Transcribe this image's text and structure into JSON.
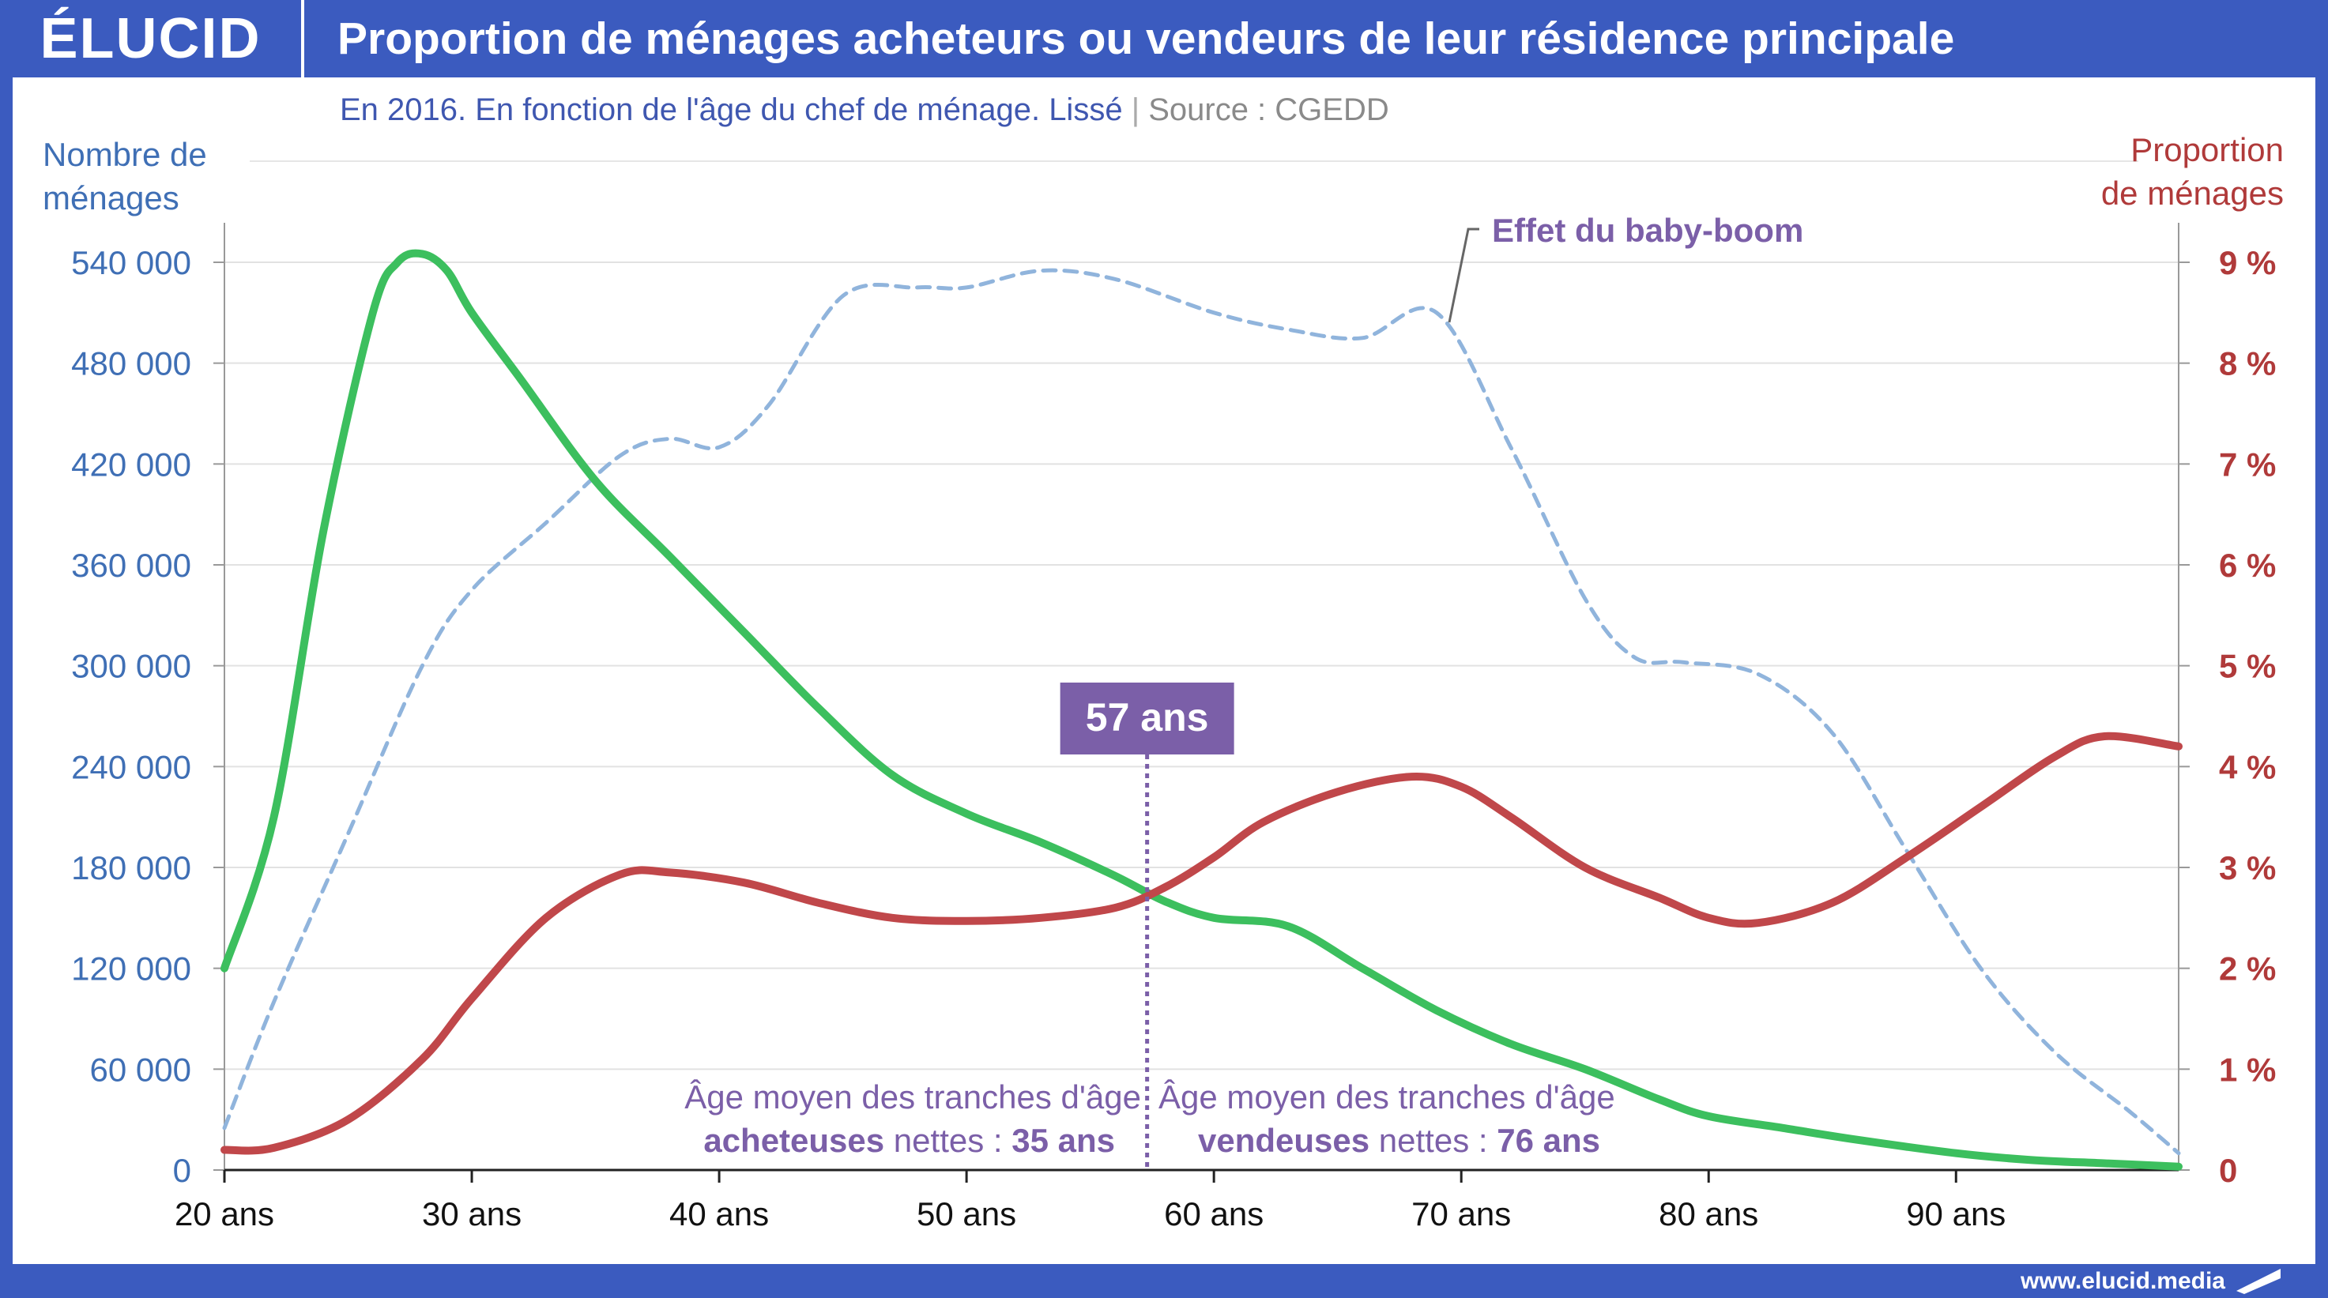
{
  "header": {
    "logo": "ÉLUCID",
    "title": "Proportion de ménages acheteurs ou vendeurs de leur résidence principale"
  },
  "subtitle": "En 2016. En fonction de l'âge du chef de ménage. Lissé",
  "source": "Source : CGEDD",
  "footer": {
    "website": "www.elucid.media"
  },
  "colors": {
    "brand": "#3b5bbf",
    "green": "#3cbf5e",
    "red": "#c0474a",
    "blue_dashed": "#90b4dc",
    "purple": "#7b5fa8",
    "left_axis": "#3f6fb5",
    "right_axis": "#b03a3a"
  },
  "chart_data": {
    "type": "line",
    "ylabel_left": [
      "Nombre de",
      "ménages"
    ],
    "ylabel_right": [
      "Proportion",
      "de ménages"
    ],
    "x_ticks": [
      {
        "value": 20,
        "label": "20 ans"
      },
      {
        "value": 30,
        "label": "30 ans"
      },
      {
        "value": 40,
        "label": "40 ans"
      },
      {
        "value": 50,
        "label": "50 ans"
      },
      {
        "value": 60,
        "label": "60 ans"
      },
      {
        "value": 70,
        "label": "70 ans"
      },
      {
        "value": 80,
        "label": "80 ans"
      },
      {
        "value": 90,
        "label": "90 ans"
      }
    ],
    "xlim": [
      20,
      99
    ],
    "y_left_ticks": [
      {
        "value": 0,
        "label": "0"
      },
      {
        "value": 60000,
        "label": "60 000"
      },
      {
        "value": 120000,
        "label": "120 000"
      },
      {
        "value": 180000,
        "label": "180 000"
      },
      {
        "value": 240000,
        "label": "240 000"
      },
      {
        "value": 300000,
        "label": "300 000"
      },
      {
        "value": 360000,
        "label": "360 000"
      },
      {
        "value": 420000,
        "label": "420 000"
      },
      {
        "value": 480000,
        "label": "480 000"
      },
      {
        "value": 540000,
        "label": "540 000"
      }
    ],
    "y_left_lim": [
      0,
      540000
    ],
    "y_right_ticks": [
      {
        "value": 0,
        "label": "0"
      },
      {
        "value": 1,
        "label": "1 %"
      },
      {
        "value": 2,
        "label": "2 %"
      },
      {
        "value": 3,
        "label": "3 %"
      },
      {
        "value": 4,
        "label": "4 %"
      },
      {
        "value": 5,
        "label": "5 %"
      },
      {
        "value": 6,
        "label": "6 %"
      },
      {
        "value": 7,
        "label": "7 %"
      },
      {
        "value": 8,
        "label": "8 %"
      },
      {
        "value": 9,
        "label": "9 %"
      }
    ],
    "y_right_lim": [
      0,
      9
    ],
    "grid": true,
    "series": [
      {
        "key": "households",
        "axis": "left",
        "style": "dashed",
        "x": [
          20,
          22,
          25,
          28,
          30,
          33,
          36,
          38,
          40,
          42,
          45,
          48,
          50,
          53,
          56,
          60,
          63,
          66,
          69,
          72,
          75,
          77,
          79,
          82,
          85,
          88,
          91,
          94,
          97,
          99
        ],
        "y": [
          25000,
          100000,
          200000,
          300000,
          345000,
          385000,
          425000,
          435000,
          430000,
          455000,
          520000,
          525000,
          525000,
          535000,
          530000,
          510000,
          500000,
          495000,
          510000,
          430000,
          340000,
          305000,
          302000,
          295000,
          260000,
          190000,
          120000,
          70000,
          35000,
          10000
        ]
      },
      {
        "key": "green",
        "axis": "left",
        "style": "solid",
        "x": [
          20,
          22,
          24,
          26,
          27,
          28,
          29,
          30,
          32,
          35,
          38,
          41,
          44,
          47,
          50,
          53,
          56,
          58,
          60,
          63,
          66,
          69,
          72,
          75,
          78,
          80,
          83,
          86,
          90,
          93,
          96,
          99
        ],
        "y": [
          120000,
          210000,
          380000,
          510000,
          540000,
          545000,
          535000,
          510000,
          470000,
          410000,
          365000,
          320000,
          275000,
          235000,
          212000,
          195000,
          175000,
          160000,
          150000,
          145000,
          120000,
          95000,
          75000,
          60000,
          42000,
          32000,
          25000,
          18000,
          10000,
          6000,
          4000,
          2000
        ]
      },
      {
        "key": "red",
        "axis": "right",
        "style": "solid",
        "x": [
          20,
          22,
          25,
          28,
          30,
          33,
          36,
          38,
          41,
          44,
          47,
          50,
          53,
          56,
          58,
          60,
          62,
          65,
          68,
          70,
          72,
          75,
          78,
          80,
          82,
          85,
          88,
          91,
          94,
          96,
          99
        ],
        "y": [
          0.2,
          0.22,
          0.5,
          1.1,
          1.7,
          2.5,
          2.93,
          2.95,
          2.85,
          2.65,
          2.5,
          2.47,
          2.5,
          2.6,
          2.8,
          3.1,
          3.45,
          3.75,
          3.9,
          3.8,
          3.5,
          3.0,
          2.7,
          2.5,
          2.45,
          2.65,
          3.1,
          3.6,
          4.1,
          4.3,
          4.2
        ]
      }
    ],
    "annotations": {
      "baby_boom": "Effet du baby-boom",
      "marker_label": "57 ans",
      "marker_x": 57.3,
      "buyers_line1": "Âge moyen des tranches d'âge",
      "buyers_bold": "acheteuses",
      "buyers_mid": " nettes : ",
      "buyers_age": "35 ans",
      "sellers_line1": "Âge moyen des tranches d'âge",
      "sellers_bold": "vendeuses",
      "sellers_mid": " nettes : ",
      "sellers_age": "76 ans"
    }
  }
}
